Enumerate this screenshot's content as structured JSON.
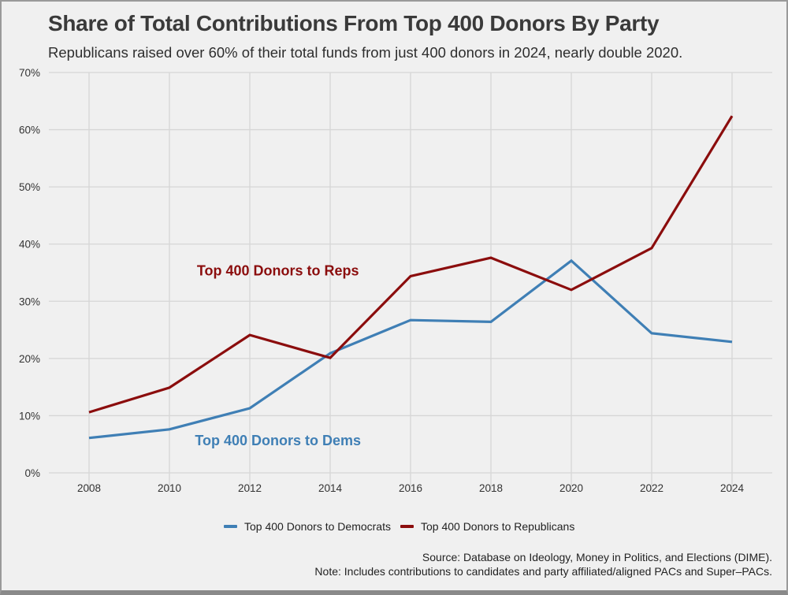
{
  "colors": {
    "democrats": "#3f7fb5",
    "republicans": "#8b0d0d",
    "grid": "#d6d6d6",
    "background": "#f0f0f0"
  },
  "chart_data": {
    "type": "line",
    "title": "Share of Total Contributions From Top 400 Donors By Party",
    "subtitle": "Republicans raised over 60% of their total funds from just 400 donors in 2024, nearly double 2020.",
    "xlabel": "",
    "ylabel": "",
    "x": [
      2008,
      2010,
      2012,
      2014,
      2016,
      2018,
      2020,
      2022,
      2024
    ],
    "x_tick_labels": [
      "2008",
      "2010",
      "2012",
      "2014",
      "2016",
      "2018",
      "2020",
      "2022",
      "2024"
    ],
    "xlim": [
      2007,
      2025
    ],
    "ylim": [
      0,
      70
    ],
    "y_ticks": [
      0,
      10,
      20,
      30,
      40,
      50,
      60,
      70
    ],
    "y_tick_labels": [
      "0%",
      "10%",
      "20%",
      "30%",
      "40%",
      "50%",
      "60%",
      "70%"
    ],
    "grid": true,
    "legend_position": "bottom",
    "series": [
      {
        "name": "Top 400 Donors to Democrats",
        "color_key": "democrats",
        "values": [
          6.1,
          7.6,
          11.3,
          20.9,
          26.7,
          26.4,
          37.1,
          24.4,
          22.9
        ]
      },
      {
        "name": "Top 400 Donors to Republicans",
        "color_key": "republicans",
        "values": [
          10.6,
          14.9,
          24.1,
          20.1,
          34.4,
          37.6,
          32.0,
          39.3,
          62.4
        ]
      }
    ],
    "annotations": [
      {
        "text": "Top 400 Donors to Reps",
        "series": "republicans",
        "x": 2012.7,
        "y": 34.5
      },
      {
        "text": "Top 400 Donors to Dems",
        "series": "democrats",
        "x": 2012.7,
        "y": 4.8
      }
    ]
  },
  "legend": {
    "items": [
      {
        "label": "Top 400 Donors to Democrats",
        "color": "#3f7fb5"
      },
      {
        "label": "Top 400 Donors to Republicans",
        "color": "#8b0d0d"
      }
    ]
  },
  "footer": {
    "source": "Source: Database on Ideology, Money in Politics, and Elections (DIME).",
    "note": "Note: Includes contributions to candidates and party affiliated/aligned PACs and Super–PACs."
  }
}
